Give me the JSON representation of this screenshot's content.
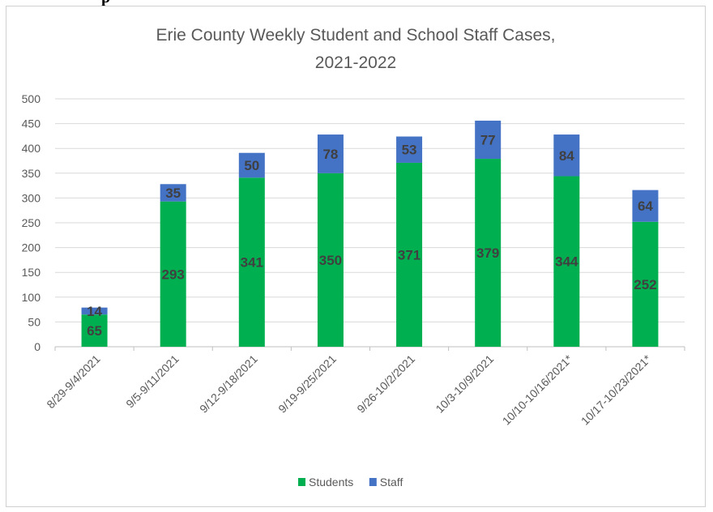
{
  "page_fragment": "p",
  "chart_data": {
    "type": "bar",
    "stacked": true,
    "title": "Erie County Weekly Student and School Staff Cases,",
    "title_line2": "2021-2022",
    "xlabel": "",
    "ylabel": "",
    "ylim": [
      0,
      500
    ],
    "yticks": [
      0,
      50,
      100,
      150,
      200,
      250,
      300,
      350,
      400,
      450,
      500
    ],
    "grid": true,
    "legend_position": "bottom",
    "categories": [
      "8/29-9/4/2021",
      "9/5-9/11/2021",
      "9/12-9/18/2021",
      "9/19-9/25/2021",
      "9/26-10/2/2021",
      "10/3-10/9/2021",
      "10/10-10/16/2021*",
      "10/17-10/23/2021*"
    ],
    "series": [
      {
        "name": "Students",
        "color": "#00b050",
        "values": [
          65,
          293,
          341,
          350,
          371,
          379,
          344,
          252
        ]
      },
      {
        "name": "Staff",
        "color": "#4472c4",
        "values": [
          14,
          35,
          50,
          78,
          53,
          77,
          84,
          64
        ]
      }
    ]
  }
}
